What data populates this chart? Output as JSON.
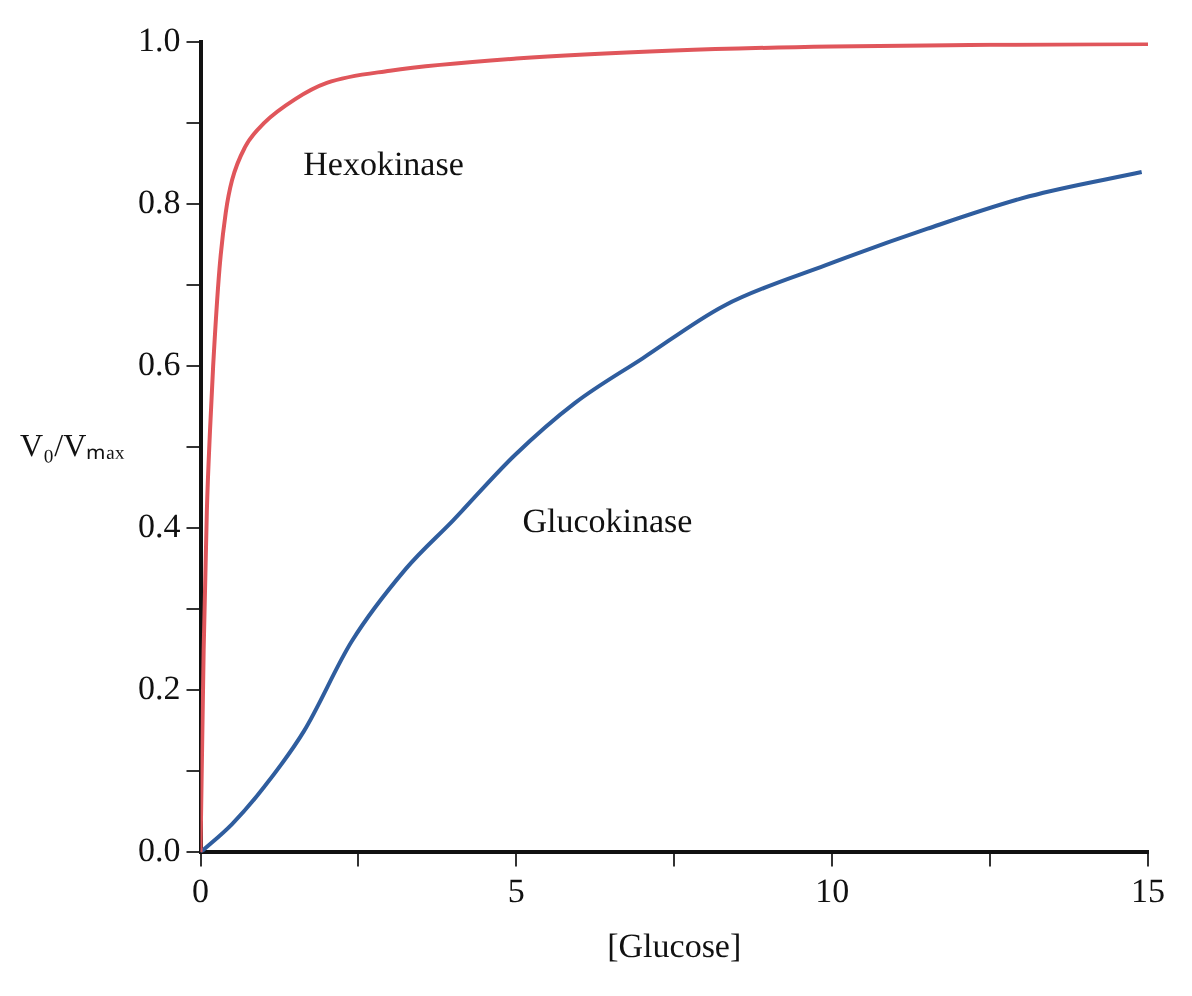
{
  "chart_data": {
    "type": "line",
    "xlabel": "[Glucose]",
    "ylabel": "V₀/Vₘₐₓ",
    "xlim": [
      0,
      15
    ],
    "xticks": [
      0,
      {
        "value": 2.5,
        "label": null
      },
      5,
      {
        "value": 7.5,
        "label": null
      },
      10,
      {
        "value": 12.5,
        "label": null
      },
      15
    ],
    "ylim": [
      0,
      1
    ],
    "yticks": [
      {
        "value": 0,
        "label": "0.0"
      },
      {
        "value": 0.1,
        "label": null
      },
      {
        "value": 0.2,
        "label": "0.2"
      },
      {
        "value": 0.3,
        "label": null
      },
      {
        "value": 0.4,
        "label": "0.4"
      },
      {
        "value": 0.5,
        "label": null
      },
      {
        "value": 0.6,
        "label": "0.6"
      },
      {
        "value": 0.7,
        "label": null
      },
      {
        "value": 0.8,
        "label": "0.8"
      },
      {
        "value": 0.9,
        "label": null
      },
      {
        "value": 1,
        "label": "1.0"
      }
    ],
    "grid": false,
    "legend": false,
    "marker": "none",
    "line_style": "solid",
    "series": [
      {
        "name": "Hexokinase",
        "color": "#e0565b",
        "x": [
          0,
          0.05,
          0.1,
          0.15,
          0.2,
          0.3,
          0.4,
          0.5,
          0.7,
          1,
          1.5,
          2,
          3,
          5,
          7.5,
          10,
          12.5,
          15
        ],
        "values": [
          0,
          0.25,
          0.42,
          0.52,
          0.6,
          0.72,
          0.79,
          0.83,
          0.87,
          0.9,
          0.93,
          0.95,
          0.965,
          0.98,
          0.99,
          0.995,
          0.997,
          0.998
        ]
      },
      {
        "name": "Glucokinase",
        "color": "#2f5d9e",
        "x": [
          0,
          0.5,
          1.0,
          1.64,
          2.39,
          3.25,
          4.0,
          4.97,
          5.93,
          7.0,
          8.29,
          9.9,
          11.51,
          13.12,
          14.9
        ],
        "values": [
          0,
          0.035,
          0.08,
          0.15,
          0.26,
          0.35,
          0.41,
          0.49,
          0.555,
          0.61,
          0.675,
          0.725,
          0.77,
          0.81,
          0.84
        ]
      }
    ]
  }
}
